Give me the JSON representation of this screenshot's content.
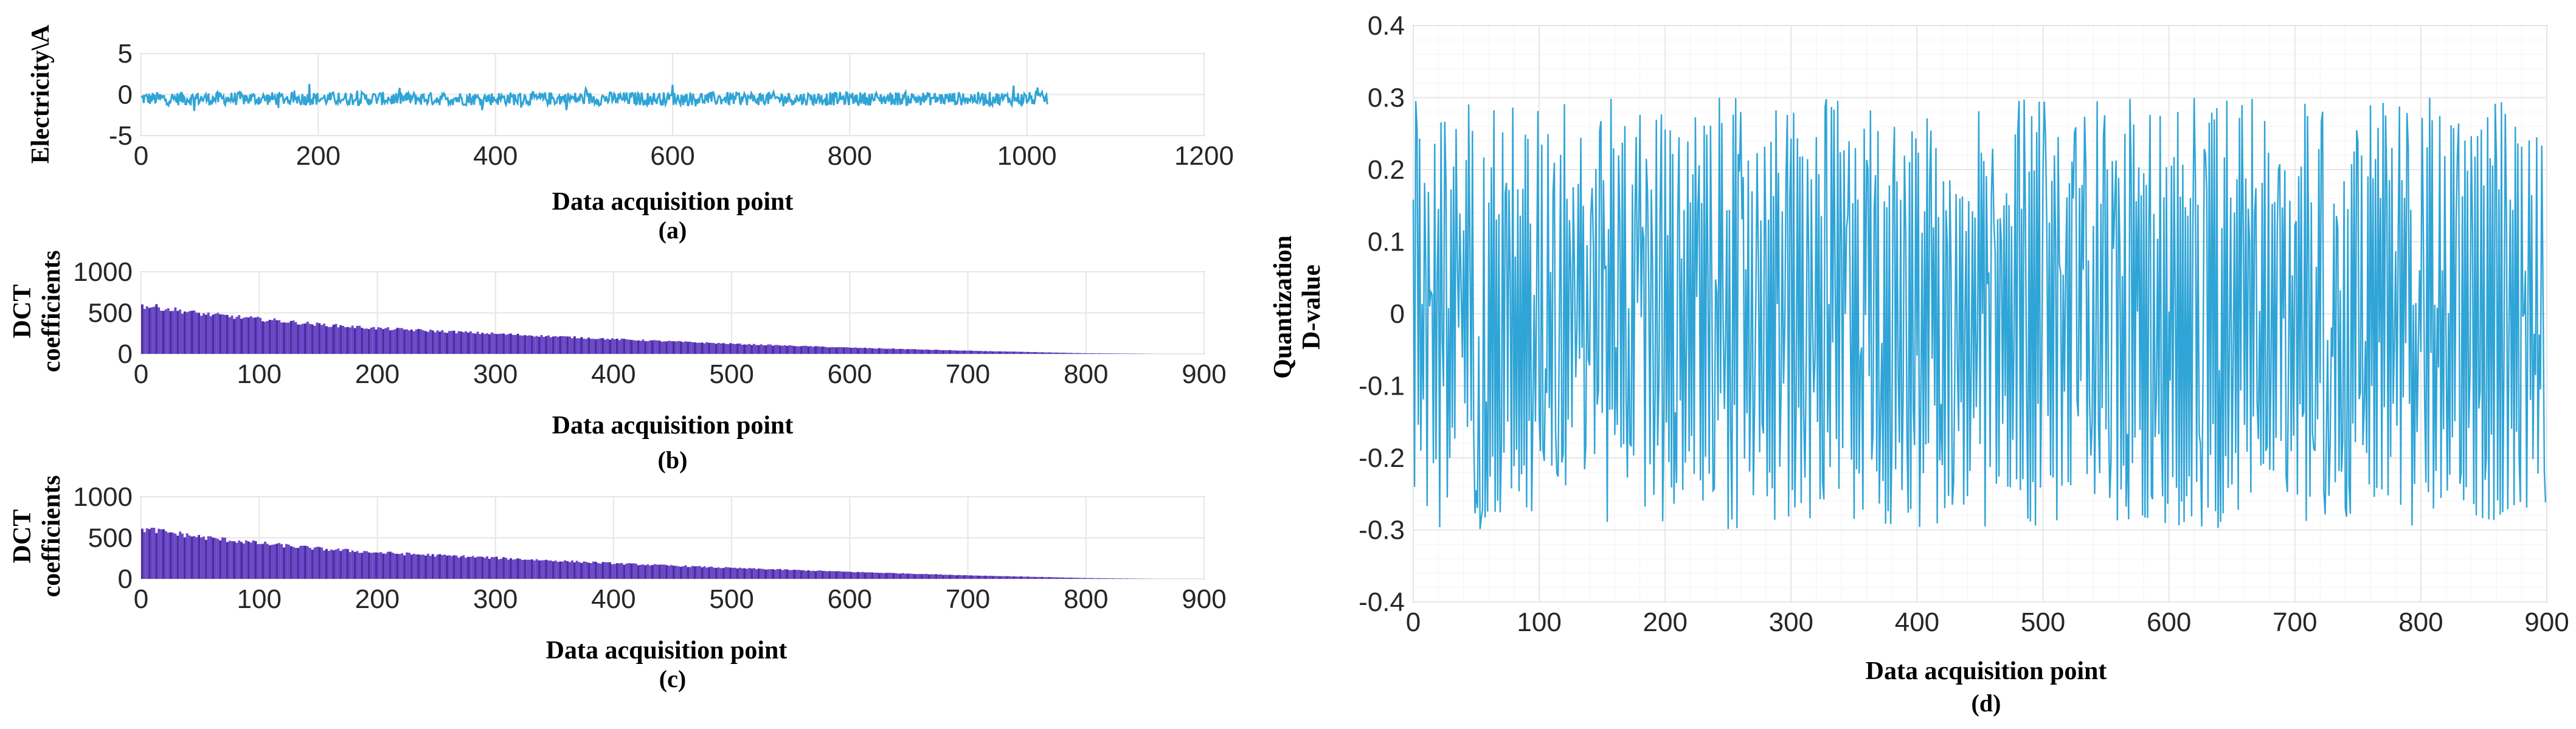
{
  "chart_data": [
    {
      "id": "a",
      "type": "line",
      "caption": "(a)",
      "xlabel": "Data acquisition point",
      "ylabel": "Electricity\\A",
      "xlim": [
        0,
        1200
      ],
      "ylim": [
        -5,
        5
      ],
      "xticks": [
        "0",
        "200",
        "400",
        "600",
        "800",
        "1000",
        "1200"
      ],
      "yticks": [
        "5",
        "0",
        "-5"
      ],
      "grid": true,
      "color": "#2fa4d6",
      "series": {
        "n_points": 1024,
        "x_start": 0,
        "x_end": 1023,
        "mean": -0.5,
        "typical_range": [
          -1.6,
          0.6
        ],
        "min": -2.0,
        "max": 1.3,
        "spikes": [
          {
            "x": 190,
            "y": 1.3
          },
          {
            "x": 600,
            "y": 1.2
          },
          {
            "x": 985,
            "y": 1.1
          },
          {
            "x": 60,
            "y": -2.0
          },
          {
            "x": 480,
            "y": -1.9
          }
        ]
      }
    },
    {
      "id": "b",
      "type": "bar",
      "caption": "(b)",
      "xlabel": "Data acquisition point",
      "ylabel": [
        "DCT",
        "coefficients"
      ],
      "xlim": [
        0,
        900
      ],
      "ylim": [
        0,
        1000
      ],
      "xticks": [
        "0",
        "100",
        "200",
        "300",
        "400",
        "500",
        "600",
        "700",
        "800",
        "900"
      ],
      "yticks": [
        "1000",
        "500",
        "0"
      ],
      "grid": true,
      "color": "#6b47c9",
      "envelope": {
        "x": [
          0,
          10,
          50,
          100,
          150,
          200,
          300,
          400,
          500,
          600,
          700,
          800,
          860
        ],
        "y": [
          620,
          610,
          520,
          450,
          380,
          330,
          260,
          190,
          130,
          80,
          40,
          8,
          0
        ]
      }
    },
    {
      "id": "c",
      "type": "bar",
      "caption": "(c)",
      "xlabel": "Data acquisition point",
      "ylabel": [
        "DCT",
        "coefficients"
      ],
      "xlim": [
        0,
        900
      ],
      "ylim": [
        0,
        1000
      ],
      "xticks": [
        "0",
        "100",
        "200",
        "300",
        "400",
        "500",
        "600",
        "700",
        "800",
        "900"
      ],
      "yticks": [
        "1000",
        "500",
        "0"
      ],
      "grid": true,
      "color": "#6b47c9",
      "envelope": {
        "x": [
          0,
          10,
          50,
          100,
          150,
          200,
          300,
          400,
          500,
          600,
          700,
          800,
          860
        ],
        "y": [
          640,
          630,
          540,
          460,
          390,
          340,
          270,
          200,
          140,
          90,
          45,
          10,
          0
        ]
      }
    },
    {
      "id": "d",
      "type": "line",
      "caption": "(d)",
      "xlabel": "Data acquisition point",
      "ylabel": [
        "Quantization",
        "D-value"
      ],
      "xlim": [
        0,
        900
      ],
      "ylim": [
        -0.4,
        0.4
      ],
      "xticks": [
        "0",
        "100",
        "200",
        "300",
        "400",
        "500",
        "600",
        "700",
        "800",
        "900"
      ],
      "yticks": [
        "0.4",
        "0.3",
        "0.2",
        "0.1",
        "0",
        "-0.1",
        "-0.2",
        "-0.3",
        "-0.4"
      ],
      "grid": true,
      "color": "#2fa4d6",
      "series": {
        "n_points": 900,
        "x_start": 0,
        "x_end": 899,
        "min": -0.3,
        "max": 0.3,
        "distribution": "oscillating, amplitude up to ±0.3"
      }
    }
  ]
}
